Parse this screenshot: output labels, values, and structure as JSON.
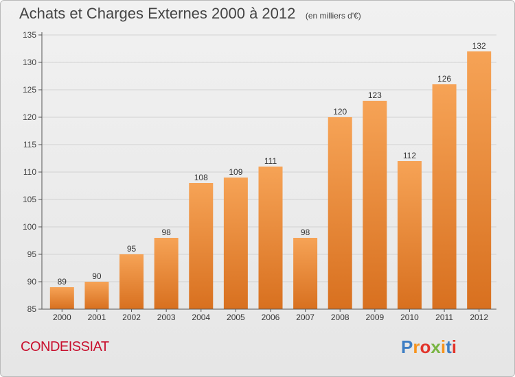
{
  "header": {
    "title": "Achats et Charges Externes 2000 à 2012",
    "unit": "(en milliers d'€)"
  },
  "footer": {
    "place": "CONDEISSIAT",
    "logo_text": "Proxiti"
  },
  "colors": {
    "bar_light": "#f6a356",
    "bar_dark": "#d8701f",
    "axis": "#555555",
    "grid": "#d2d2d2",
    "logo_letters": [
      "#3e7ec4",
      "#f7941d",
      "#e2342b",
      "#79b543",
      "#f7941d",
      "#3e7ec4",
      "#e2342b"
    ]
  },
  "chart_data": {
    "type": "bar",
    "title": "Achats et Charges Externes 2000 à 2012",
    "categories": [
      "2000",
      "2001",
      "2002",
      "2003",
      "2004",
      "2005",
      "2006",
      "2007",
      "2008",
      "2009",
      "2010",
      "2011",
      "2012"
    ],
    "values": [
      89,
      90,
      95,
      98,
      108,
      109,
      111,
      98,
      120,
      123,
      112,
      126,
      132
    ],
    "ylim": [
      85,
      135
    ],
    "yticks": [
      85,
      90,
      95,
      100,
      105,
      110,
      115,
      120,
      125,
      130,
      135
    ],
    "grid": true
  }
}
